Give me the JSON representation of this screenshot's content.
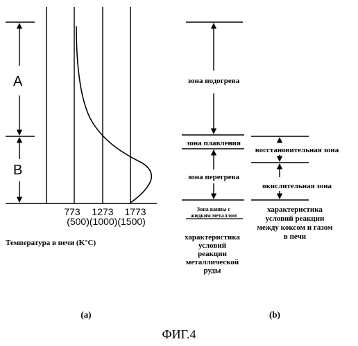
{
  "panel_a": {
    "label_A": "A",
    "label_B": "B",
    "tick_labels_k": [
      "773",
      "1273",
      "1773"
    ],
    "tick_labels_c": "(500)(1000)(1500)",
    "axis_title": "Температура в печи  (K°C)",
    "caption": "(a)"
  },
  "panel_b": {
    "zones_left": [
      "зона подогрева",
      "зона плавления",
      "зона перегрева",
      "Зона ванны с",
      "жидким металлом"
    ],
    "zones_right": [
      "восстановительная зона",
      "окислительная зона"
    ],
    "left_caption": [
      "характеристика",
      "условий",
      "реакции",
      "металлической",
      "руды"
    ],
    "right_caption": [
      "характеристика",
      "условий реакции",
      "между коксом и газом",
      "в печи"
    ],
    "caption": "(b)"
  },
  "figure_title": "ФИГ.4"
}
